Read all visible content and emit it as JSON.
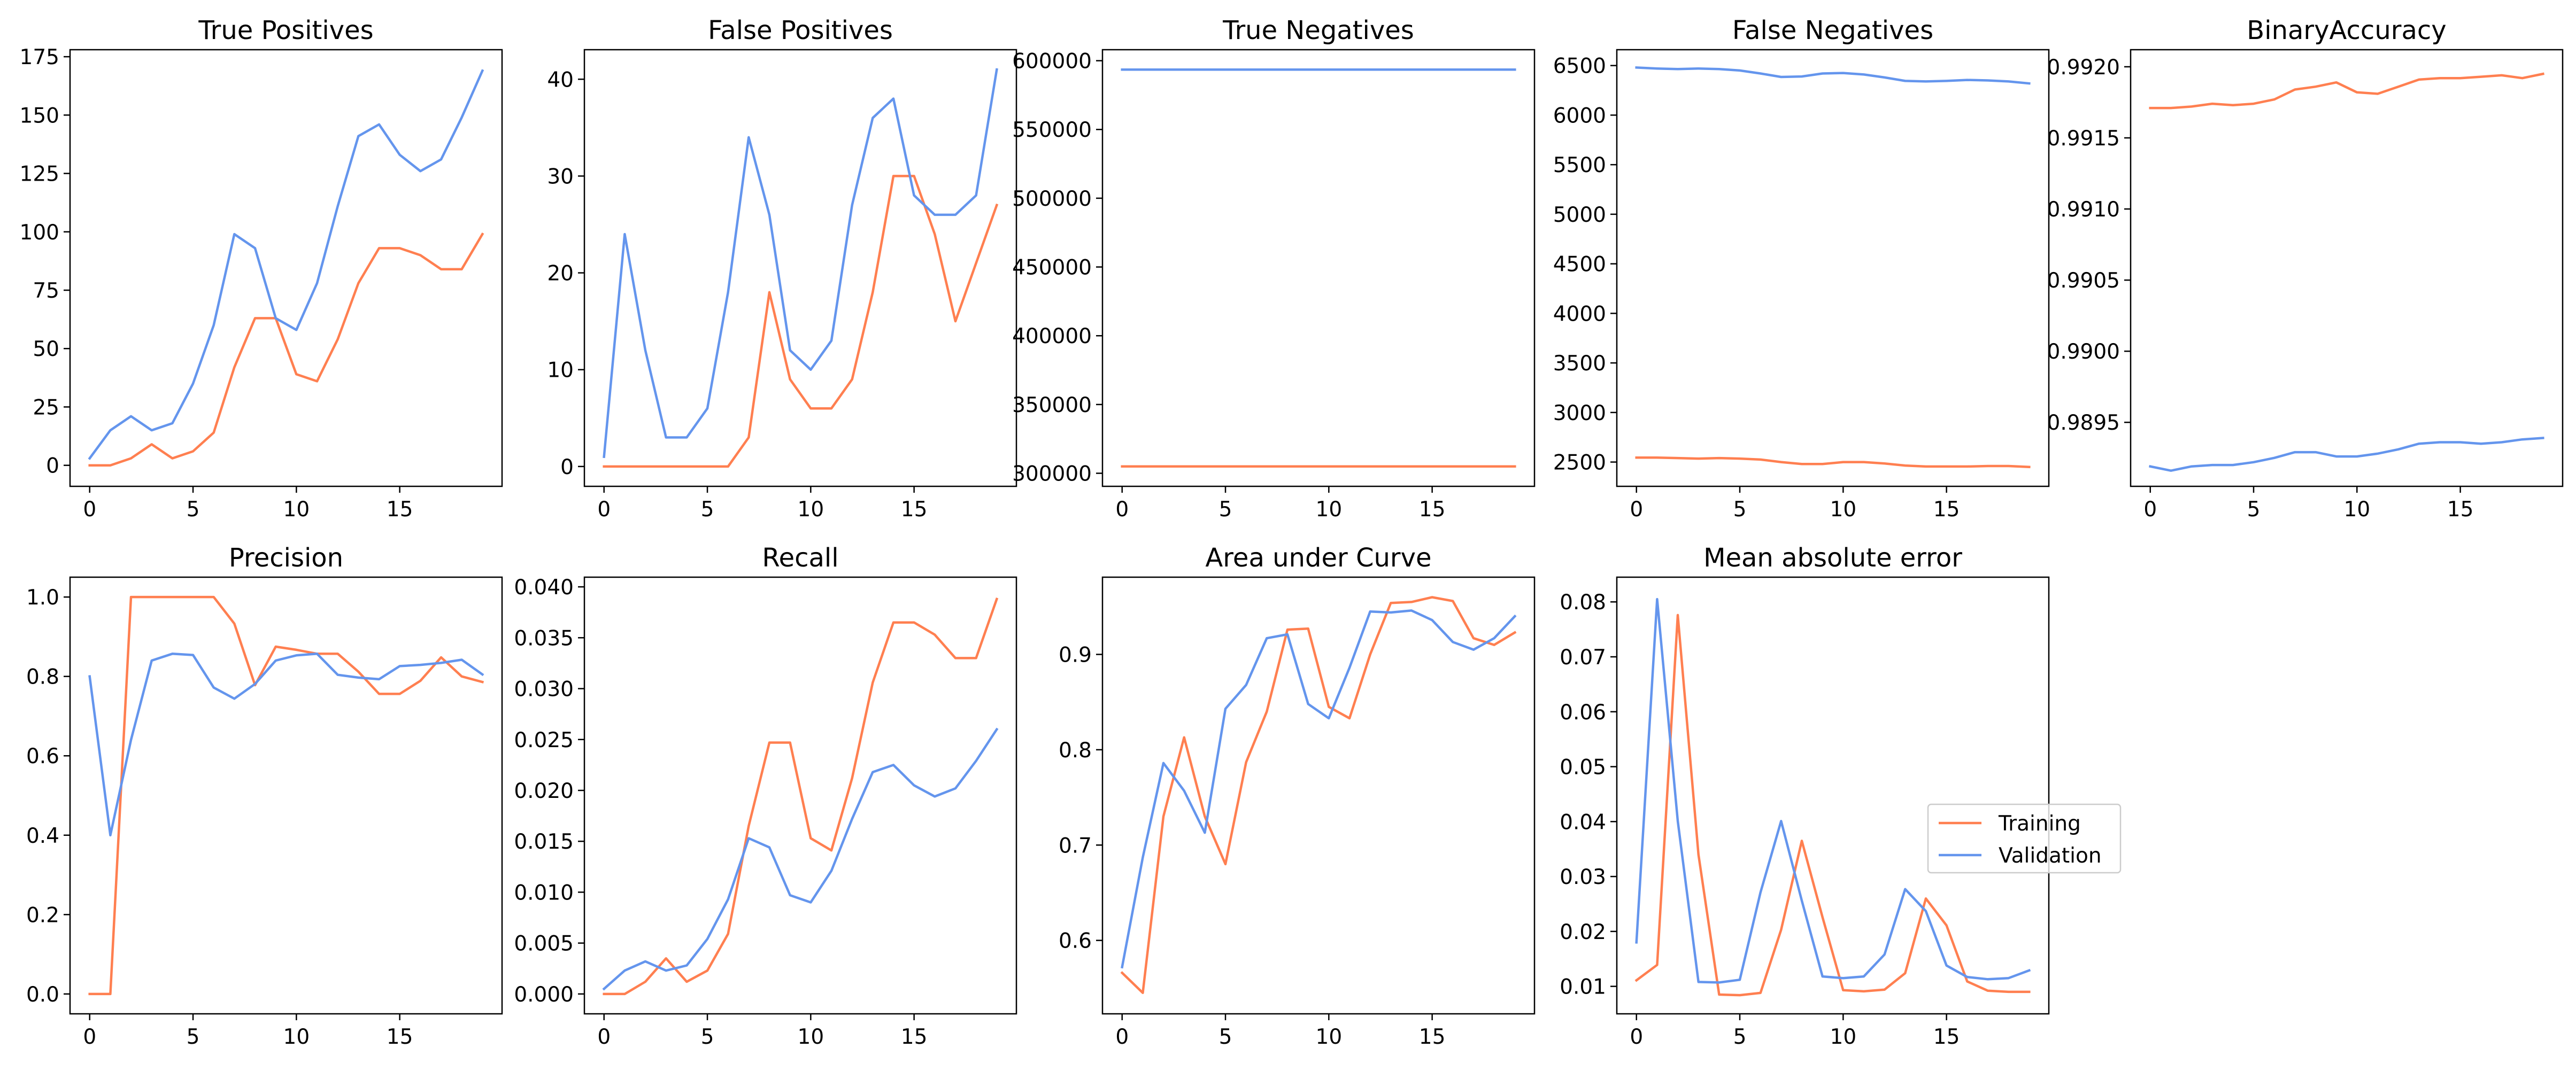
{
  "legend": {
    "placement": "center-right",
    "entries": [
      {
        "label": "Training",
        "color": "#ff7f50"
      },
      {
        "label": "Validation",
        "color": "#6495ed"
      }
    ]
  },
  "chart_data": [
    {
      "type": "line",
      "title": "True Positives",
      "xlabel": "",
      "ylabel": "",
      "xlim": [
        -0.95,
        19.95
      ],
      "ylim": [
        -9,
        178
      ],
      "xticks": [
        0,
        5,
        10,
        15
      ],
      "yticks": [
        0,
        25,
        50,
        75,
        100,
        125,
        150,
        175
      ],
      "ytick_labels": [
        "0",
        "25",
        "50",
        "75",
        "100",
        "125",
        "150",
        "175"
      ],
      "x": [
        0,
        1,
        2,
        3,
        4,
        5,
        6,
        7,
        8,
        9,
        10,
        11,
        12,
        13,
        14,
        15,
        16,
        17,
        18,
        19
      ],
      "series": [
        {
          "name": "Training",
          "color": "#ff7f50",
          "values": [
            0,
            0,
            3,
            9,
            3,
            6,
            14,
            42,
            63,
            63,
            39,
            36,
            54,
            78,
            93,
            93,
            90,
            84,
            84,
            99
          ]
        },
        {
          "name": "Validation",
          "color": "#6495ed",
          "values": [
            3,
            15,
            21,
            15,
            18,
            35,
            60,
            99,
            93,
            63,
            58,
            78,
            111,
            141,
            146,
            133,
            126,
            131,
            149,
            169
          ]
        }
      ]
    },
    {
      "type": "line",
      "title": "False Positives",
      "xlabel": "",
      "ylabel": "",
      "xlim": [
        -0.95,
        19.95
      ],
      "ylim": [
        -2.05,
        43.05
      ],
      "xticks": [
        0,
        5,
        10,
        15
      ],
      "yticks": [
        0,
        10,
        20,
        30,
        40
      ],
      "ytick_labels": [
        "0",
        "10",
        "20",
        "30",
        "40"
      ],
      "x": [
        0,
        1,
        2,
        3,
        4,
        5,
        6,
        7,
        8,
        9,
        10,
        11,
        12,
        13,
        14,
        15,
        16,
        17,
        18,
        19
      ],
      "series": [
        {
          "name": "Training",
          "color": "#ff7f50",
          "values": [
            0,
            0,
            0,
            0,
            0,
            0,
            0,
            3,
            18,
            9,
            6,
            6,
            9,
            18,
            30,
            30,
            24,
            15,
            21,
            27
          ]
        },
        {
          "name": "Validation",
          "color": "#6495ed",
          "values": [
            1,
            24,
            12,
            3,
            3,
            6,
            18,
            34,
            26,
            12,
            10,
            13,
            27,
            36,
            38,
            28,
            26,
            26,
            28,
            41
          ]
        }
      ]
    },
    {
      "type": "line",
      "title": "True Negatives",
      "xlabel": "",
      "ylabel": "",
      "xlim": [
        -0.95,
        19.95
      ],
      "ylim": [
        290500,
        608000
      ],
      "xticks": [
        0,
        5,
        10,
        15
      ],
      "yticks": [
        300000,
        350000,
        400000,
        450000,
        500000,
        550000,
        600000
      ],
      "ytick_labels": [
        "300000",
        "350000",
        "400000",
        "450000",
        "500000",
        "550000",
        "600000"
      ],
      "x": [
        0,
        1,
        2,
        3,
        4,
        5,
        6,
        7,
        8,
        9,
        10,
        11,
        12,
        13,
        14,
        15,
        16,
        17,
        18,
        19
      ],
      "series": [
        {
          "name": "Training",
          "color": "#ff7f50",
          "values": [
            305000,
            305000,
            305000,
            305000,
            305000,
            305000,
            305000,
            305000,
            305000,
            305000,
            305000,
            305000,
            305000,
            305000,
            305000,
            305000,
            305000,
            305000,
            305000,
            305000
          ]
        },
        {
          "name": "Validation",
          "color": "#6495ed",
          "values": [
            593500,
            593500,
            593500,
            593500,
            593500,
            593500,
            593500,
            593500,
            593500,
            593500,
            593500,
            593500,
            593500,
            593500,
            593500,
            593500,
            593500,
            593500,
            593500,
            593500
          ]
        }
      ]
    },
    {
      "type": "line",
      "title": "False Negatives",
      "xlabel": "",
      "ylabel": "",
      "xlim": [
        -0.95,
        19.95
      ],
      "ylim": [
        2255,
        6660
      ],
      "xticks": [
        0,
        5,
        10,
        15
      ],
      "yticks": [
        2500,
        3000,
        3500,
        4000,
        4500,
        5000,
        5500,
        6000,
        6500
      ],
      "ytick_labels": [
        "2500",
        "3000",
        "3500",
        "4000",
        "4500",
        "5000",
        "5500",
        "6000",
        "6500"
      ],
      "x": [
        0,
        1,
        2,
        3,
        4,
        5,
        6,
        7,
        8,
        9,
        10,
        11,
        12,
        13,
        14,
        15,
        16,
        17,
        18,
        19
      ],
      "series": [
        {
          "name": "Training",
          "color": "#ff7f50",
          "values": [
            2545,
            2545,
            2540,
            2535,
            2540,
            2535,
            2525,
            2500,
            2480,
            2480,
            2500,
            2500,
            2485,
            2465,
            2455,
            2455,
            2455,
            2460,
            2460,
            2450
          ]
        },
        {
          "name": "Validation",
          "color": "#6495ed",
          "values": [
            6480,
            6470,
            6465,
            6470,
            6465,
            6450,
            6420,
            6385,
            6390,
            6420,
            6425,
            6410,
            6380,
            6345,
            6340,
            6345,
            6355,
            6350,
            6340,
            6320
          ]
        }
      ]
    },
    {
      "type": "line",
      "title": "BinaryAccuracy",
      "xlabel": "",
      "ylabel": "",
      "xlim": [
        -0.95,
        19.95
      ],
      "ylim": [
        0.98905,
        0.99212
      ],
      "xticks": [
        0,
        5,
        10,
        15
      ],
      "yticks": [
        0.9895,
        0.99,
        0.9905,
        0.991,
        0.9915,
        0.992
      ],
      "ytick_labels": [
        "0.9895",
        "0.9900",
        "0.9905",
        "0.9910",
        "0.9915",
        "0.9920"
      ],
      "x": [
        0,
        1,
        2,
        3,
        4,
        5,
        6,
        7,
        8,
        9,
        10,
        11,
        12,
        13,
        14,
        15,
        16,
        17,
        18,
        19
      ],
      "series": [
        {
          "name": "Training",
          "color": "#ff7f50",
          "values": [
            0.99171,
            0.99171,
            0.99172,
            0.99174,
            0.99173,
            0.99174,
            0.99177,
            0.99184,
            0.99186,
            0.99189,
            0.99182,
            0.99181,
            0.99186,
            0.99191,
            0.99192,
            0.99192,
            0.99193,
            0.99194,
            0.99192,
            0.99195
          ]
        },
        {
          "name": "Validation",
          "color": "#6495ed",
          "values": [
            0.98919,
            0.98916,
            0.98919,
            0.9892,
            0.9892,
            0.98922,
            0.98925,
            0.98929,
            0.98929,
            0.98926,
            0.98926,
            0.98928,
            0.98931,
            0.98935,
            0.98936,
            0.98936,
            0.98935,
            0.98936,
            0.98938,
            0.98939
          ]
        }
      ]
    },
    {
      "type": "line",
      "title": "Precision",
      "xlabel": "",
      "ylabel": "",
      "xlim": [
        -0.95,
        19.95
      ],
      "ylim": [
        -0.05,
        1.05
      ],
      "xticks": [
        0,
        5,
        10,
        15
      ],
      "yticks": [
        0.0,
        0.2,
        0.4,
        0.6,
        0.8,
        1.0
      ],
      "ytick_labels": [
        "0.0",
        "0.2",
        "0.4",
        "0.6",
        "0.8",
        "1.0"
      ],
      "x": [
        0,
        1,
        2,
        3,
        4,
        5,
        6,
        7,
        8,
        9,
        10,
        11,
        12,
        13,
        14,
        15,
        16,
        17,
        18,
        19
      ],
      "series": [
        {
          "name": "Training",
          "color": "#ff7f50",
          "values": [
            0,
            0,
            1.0,
            1.0,
            1.0,
            1.0,
            1.0,
            0.933,
            0.778,
            0.875,
            0.867,
            0.857,
            0.857,
            0.812,
            0.756,
            0.756,
            0.789,
            0.848,
            0.8,
            0.786
          ]
        },
        {
          "name": "Validation",
          "color": "#6495ed",
          "values": [
            0.8,
            0.4,
            0.64,
            0.84,
            0.857,
            0.854,
            0.772,
            0.744,
            0.781,
            0.84,
            0.853,
            0.857,
            0.804,
            0.797,
            0.793,
            0.826,
            0.829,
            0.834,
            0.842,
            0.805
          ]
        }
      ]
    },
    {
      "type": "line",
      "title": "Recall",
      "xlabel": "",
      "ylabel": "",
      "xlim": [
        -0.95,
        19.95
      ],
      "ylim": [
        -0.00195,
        0.04095
      ],
      "xticks": [
        0,
        5,
        10,
        15
      ],
      "yticks": [
        0.0,
        0.005,
        0.01,
        0.015,
        0.02,
        0.025,
        0.03,
        0.035,
        0.04
      ],
      "ytick_labels": [
        "0.000",
        "0.005",
        "0.010",
        "0.015",
        "0.020",
        "0.025",
        "0.030",
        "0.035",
        "0.040"
      ],
      "x": [
        0,
        1,
        2,
        3,
        4,
        5,
        6,
        7,
        8,
        9,
        10,
        11,
        12,
        13,
        14,
        15,
        16,
        17,
        18,
        19
      ],
      "series": [
        {
          "name": "Training",
          "color": "#ff7f50",
          "values": [
            0,
            0,
            0.0012,
            0.0035,
            0.0012,
            0.0023,
            0.0059,
            0.0165,
            0.0247,
            0.0247,
            0.0153,
            0.0141,
            0.0212,
            0.0306,
            0.0365,
            0.0365,
            0.0353,
            0.033,
            0.033,
            0.0388
          ]
        },
        {
          "name": "Validation",
          "color": "#6495ed",
          "values": [
            0.0005,
            0.0023,
            0.0032,
            0.0023,
            0.0028,
            0.0054,
            0.0093,
            0.0153,
            0.0144,
            0.0097,
            0.009,
            0.0121,
            0.0172,
            0.0218,
            0.0225,
            0.0205,
            0.0194,
            0.0202,
            0.0229,
            0.026
          ]
        }
      ]
    },
    {
      "type": "line",
      "title": "Area under Curve",
      "xlabel": "",
      "ylabel": "",
      "xlim": [
        -0.95,
        19.95
      ],
      "ylim": [
        0.523,
        0.981
      ],
      "xticks": [
        0,
        5,
        10,
        15
      ],
      "yticks": [
        0.6,
        0.7,
        0.8,
        0.9
      ],
      "ytick_labels": [
        "0.6",
        "0.7",
        "0.8",
        "0.9"
      ],
      "x": [
        0,
        1,
        2,
        3,
        4,
        5,
        6,
        7,
        8,
        9,
        10,
        11,
        12,
        13,
        14,
        15,
        16,
        17,
        18,
        19
      ],
      "series": [
        {
          "name": "Training",
          "color": "#ff7f50",
          "values": [
            0.566,
            0.545,
            0.73,
            0.813,
            0.73,
            0.68,
            0.787,
            0.84,
            0.926,
            0.927,
            0.845,
            0.833,
            0.9,
            0.954,
            0.955,
            0.96,
            0.956,
            0.917,
            0.91,
            0.923
          ]
        },
        {
          "name": "Validation",
          "color": "#6495ed",
          "values": [
            0.572,
            0.687,
            0.786,
            0.757,
            0.713,
            0.843,
            0.868,
            0.917,
            0.921,
            0.848,
            0.833,
            0.886,
            0.945,
            0.944,
            0.946,
            0.936,
            0.913,
            0.905,
            0.917,
            0.94
          ]
        }
      ]
    },
    {
      "type": "line",
      "title": "Mean absolute error",
      "xlabel": "",
      "ylabel": "",
      "xlim": [
        -0.95,
        19.95
      ],
      "ylim": [
        0.005,
        0.0845
      ],
      "xticks": [
        0,
        5,
        10,
        15
      ],
      "yticks": [
        0.01,
        0.02,
        0.03,
        0.04,
        0.05,
        0.06,
        0.07,
        0.08
      ],
      "ytick_labels": [
        "0.01",
        "0.02",
        "0.03",
        "0.04",
        "0.05",
        "0.06",
        "0.07",
        "0.08"
      ],
      "x": [
        0,
        1,
        2,
        3,
        4,
        5,
        6,
        7,
        8,
        9,
        10,
        11,
        12,
        13,
        14,
        15,
        16,
        17,
        18,
        19
      ],
      "series": [
        {
          "name": "Training",
          "color": "#ff7f50",
          "values": [
            0.0111,
            0.0139,
            0.0776,
            0.034,
            0.0085,
            0.0084,
            0.0088,
            0.0203,
            0.0365,
            0.0226,
            0.0093,
            0.0091,
            0.0094,
            0.0124,
            0.026,
            0.0211,
            0.0109,
            0.0092,
            0.009,
            0.009
          ]
        },
        {
          "name": "Validation",
          "color": "#6495ed",
          "values": [
            0.018,
            0.0805,
            0.0401,
            0.0108,
            0.0107,
            0.0112,
            0.0271,
            0.0401,
            0.0256,
            0.0118,
            0.0115,
            0.0118,
            0.0158,
            0.0277,
            0.0237,
            0.0138,
            0.0117,
            0.0113,
            0.0115,
            0.0129
          ]
        }
      ]
    }
  ]
}
